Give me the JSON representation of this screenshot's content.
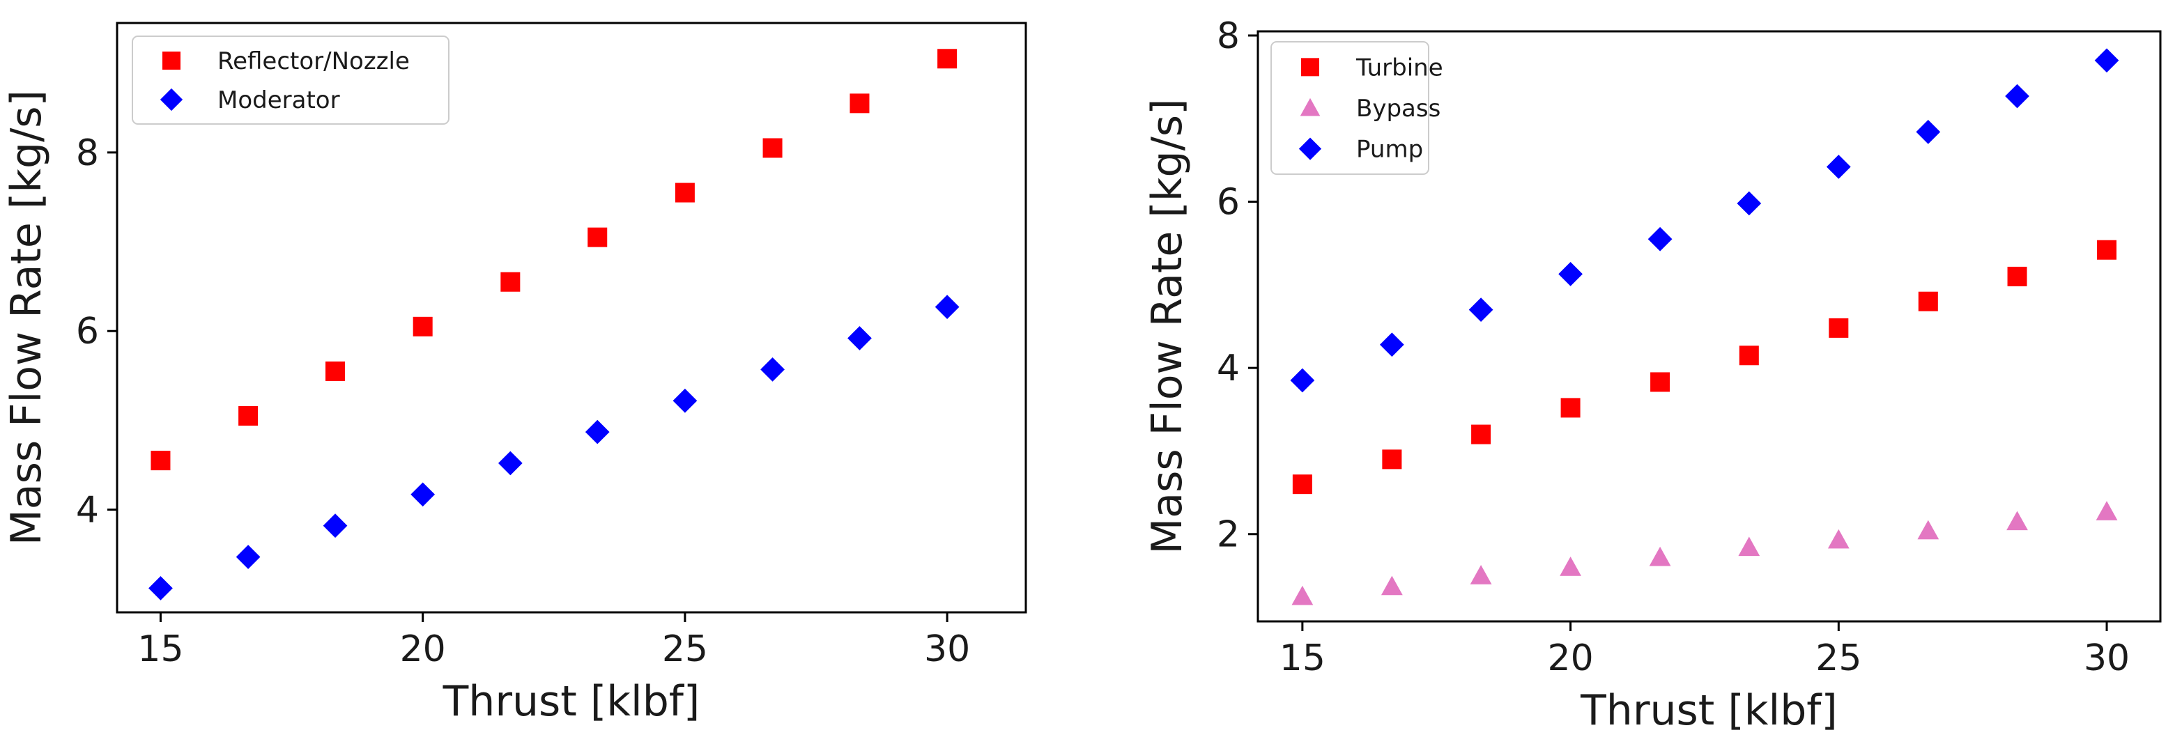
{
  "chart_data": [
    {
      "type": "scatter",
      "title": "",
      "xlabel": "Thrust [klbf]",
      "ylabel": "Mass Flow Rate [kg/s]",
      "xlim": [
        14.17,
        31.5
      ],
      "ylim": [
        2.85,
        9.45
      ],
      "xticks": [
        15,
        20,
        25,
        30
      ],
      "yticks": [
        4,
        6,
        8
      ],
      "legend_position": "upper-left",
      "x": [
        15,
        16.67,
        18.33,
        20,
        21.67,
        23.33,
        25,
        26.67,
        28.33,
        30
      ],
      "series": [
        {
          "name": "Reflector/Nozzle",
          "marker": "square",
          "color": "#ff0000",
          "values": [
            4.55,
            5.05,
            5.55,
            6.05,
            6.55,
            7.05,
            7.55,
            8.05,
            8.55,
            9.05
          ]
        },
        {
          "name": "Moderator",
          "marker": "diamond",
          "color": "#0000ff",
          "values": [
            3.12,
            3.47,
            3.82,
            4.17,
            4.52,
            4.87,
            5.22,
            5.57,
            5.92,
            6.27
          ]
        }
      ]
    },
    {
      "type": "scatter",
      "title": "",
      "xlabel": "Thrust [klbf]",
      "ylabel": "Mass Flow Rate [kg/s]",
      "xlim": [
        14.17,
        31.0
      ],
      "ylim": [
        0.95,
        8.05
      ],
      "xticks": [
        15,
        20,
        25,
        30
      ],
      "yticks": [
        2,
        4,
        6,
        8
      ],
      "legend_position": "upper-left",
      "x": [
        15,
        16.67,
        18.33,
        20,
        21.67,
        23.33,
        25,
        26.67,
        28.33,
        30
      ],
      "series": [
        {
          "name": "Turbine",
          "marker": "square",
          "color": "#ff0000",
          "values": [
            2.6,
            2.9,
            3.2,
            3.52,
            3.83,
            4.15,
            4.48,
            4.8,
            5.1,
            5.42
          ]
        },
        {
          "name": "Bypass",
          "marker": "triangle",
          "color": "#e377c2",
          "values": [
            1.25,
            1.37,
            1.5,
            1.6,
            1.72,
            1.84,
            1.93,
            2.04,
            2.15,
            2.27
          ]
        },
        {
          "name": "Pump",
          "marker": "diamond",
          "color": "#0000ff",
          "values": [
            3.85,
            4.28,
            4.7,
            5.13,
            5.55,
            5.98,
            6.42,
            6.84,
            7.27,
            7.7
          ]
        }
      ]
    }
  ]
}
